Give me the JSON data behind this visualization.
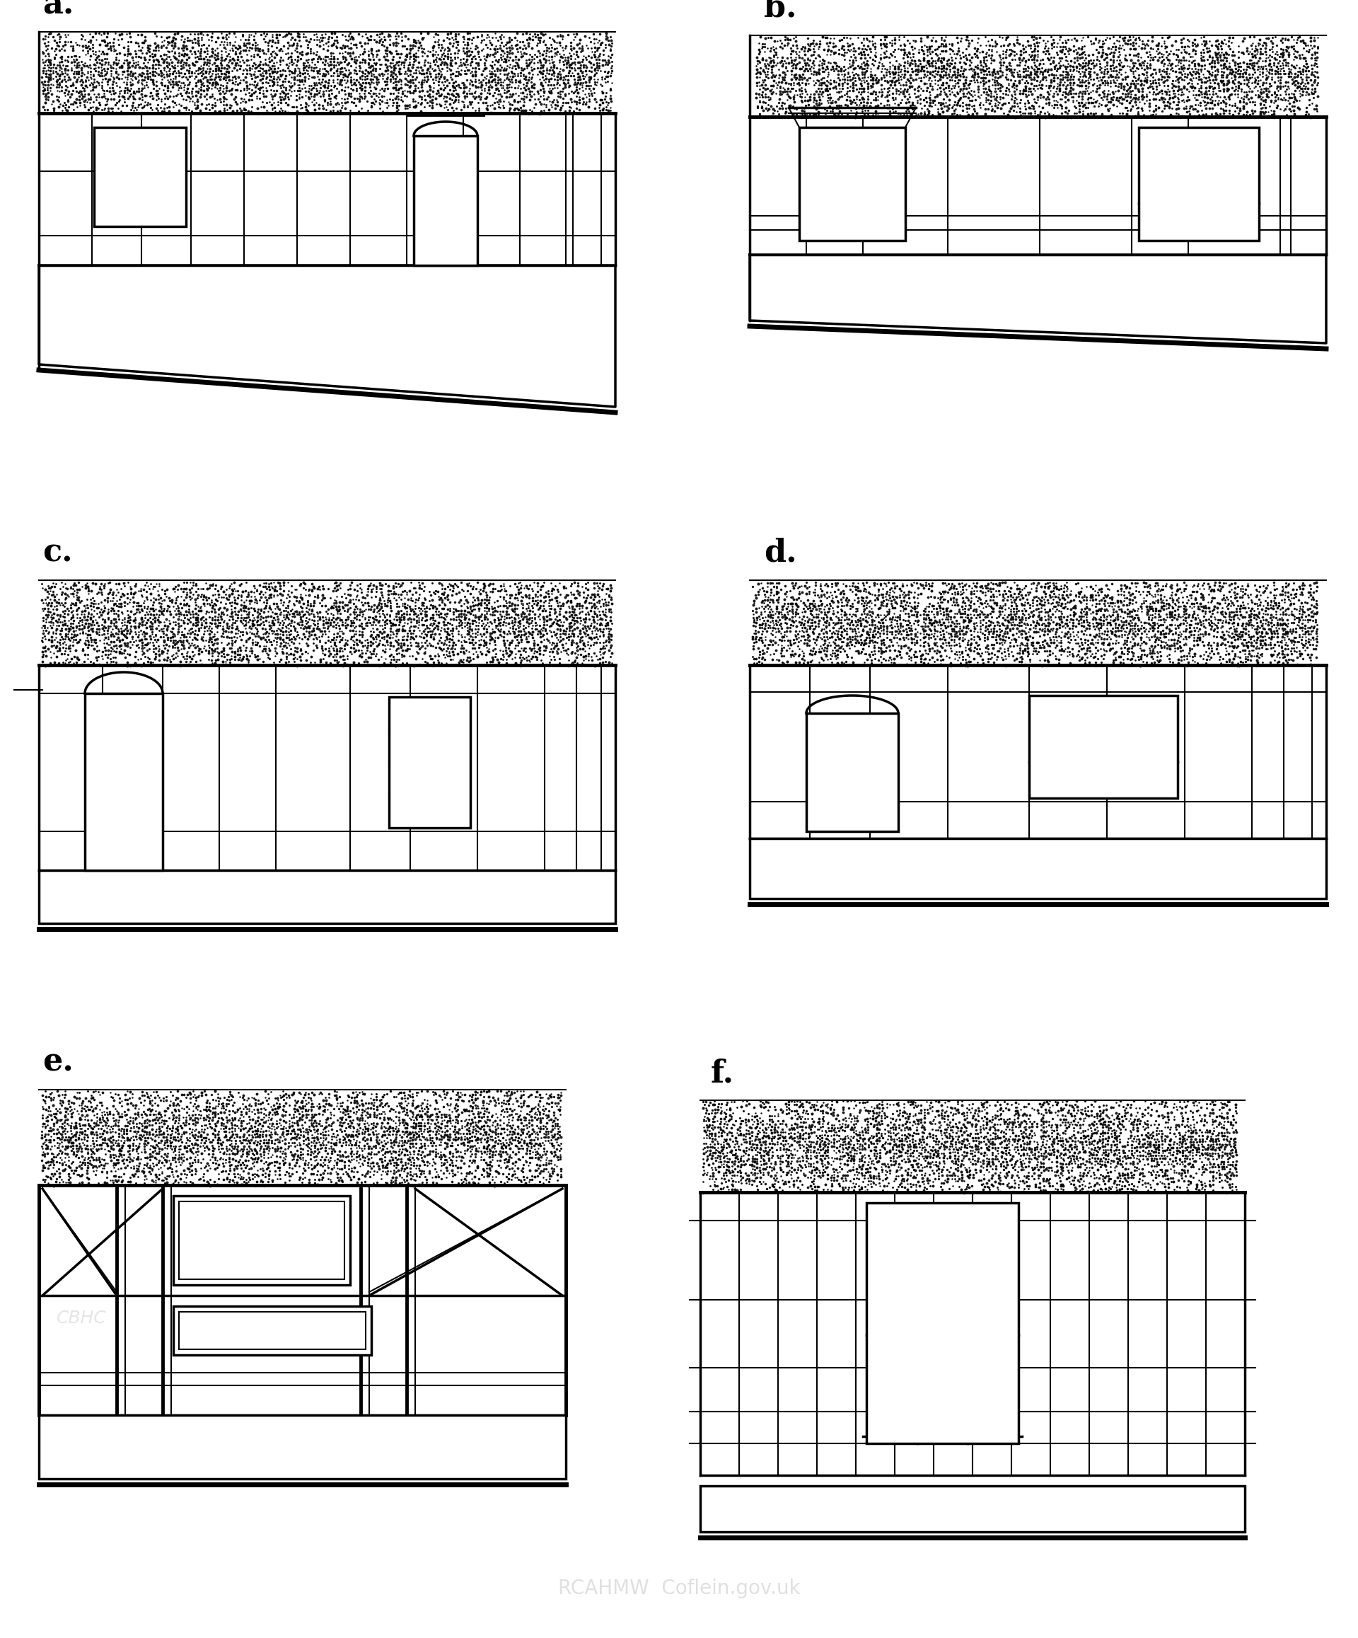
{
  "bg_color": "#ffffff",
  "line_color": "#000000",
  "labels": [
    "a.",
    "b.",
    "c.",
    "d.",
    "e.",
    "f."
  ],
  "label_fontsize": 32,
  "watermark": "RCAHMW  Coflein.gov.uk",
  "cbh": "CBHC"
}
